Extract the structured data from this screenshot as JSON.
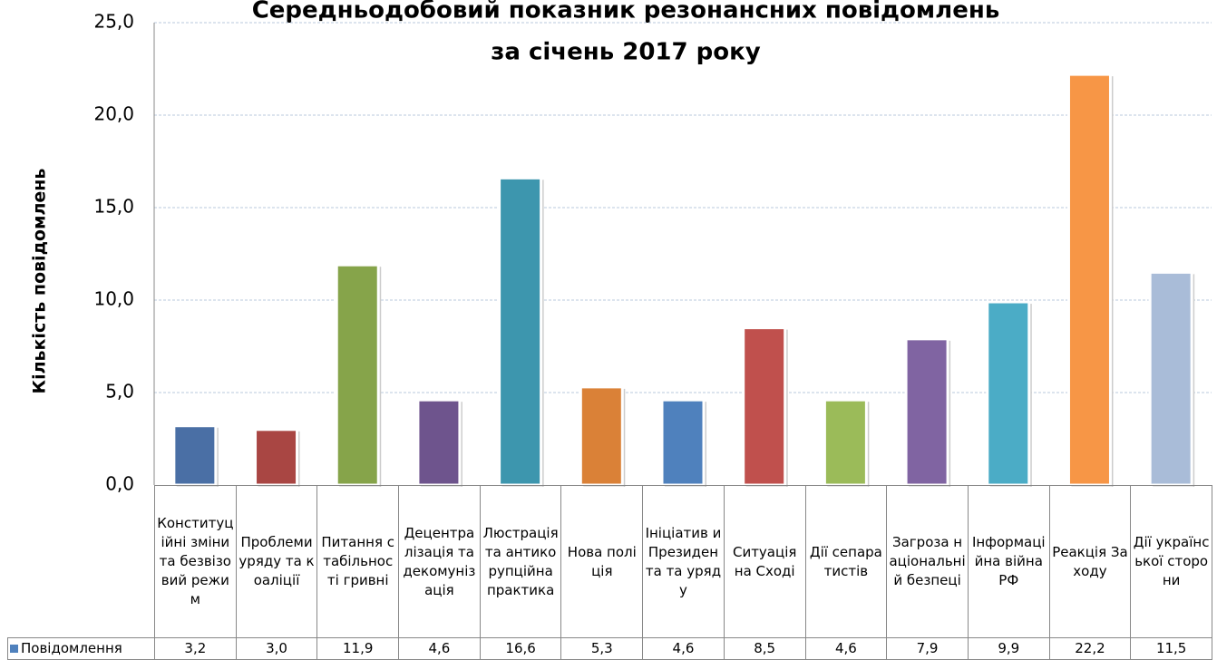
{
  "chart_data": {
    "type": "bar",
    "title_lines": [
      "Середньодобовий показник резонансних повідомлень",
      "за січень 2017 року"
    ],
    "y_label": "Кількість повідомлень",
    "categories": [
      "Конституційні зміни та безвізовий режим",
      "Проблеми уряду та коаліції",
      "Питання стабільності гривні",
      "Децентралізація та декомунізація",
      "Люстрація та антикорупційна практика",
      "Нова поліція",
      "Ініціатив и Президента та уряду",
      "Ситуація на Сході",
      "Дії сепаратистів",
      "Загроза національній безпеці",
      "Інформаційна війна РФ",
      "Реакція Заходу",
      "Дії української сторони"
    ],
    "series": [
      {
        "name": "Повідомлення",
        "color": "#4f81bd",
        "colors": [
          "#4a6fa5",
          "#a94643",
          "#86a44a",
          "#6e548d",
          "#3d96ae",
          "#da8137",
          "#4f81bd",
          "#c0504d",
          "#9bbb59",
          "#8064a2",
          "#4bacc6",
          "#f79646",
          "#a9bcd8"
        ],
        "values": [
          3.2,
          3.0,
          11.9,
          4.6,
          16.6,
          5.3,
          4.6,
          8.5,
          4.6,
          7.9,
          9.9,
          22.2,
          11.5
        ],
        "value_labels": [
          "3,2",
          "3,0",
          "11,9",
          "4,6",
          "16,6",
          "5,3",
          "4,6",
          "8,5",
          "4,6",
          "7,9",
          "9,9",
          "22,2",
          "11,5"
        ]
      }
    ],
    "ylim": [
      0,
      25
    ],
    "yticks": [
      {
        "value": 0,
        "label": "0,0"
      },
      {
        "value": 5,
        "label": "5,0"
      },
      {
        "value": 10,
        "label": "10,0"
      },
      {
        "value": 15,
        "label": "15,0"
      },
      {
        "value": 20,
        "label": "20,0"
      },
      {
        "value": 25,
        "label": "25,0"
      }
    ],
    "grid": true
  }
}
